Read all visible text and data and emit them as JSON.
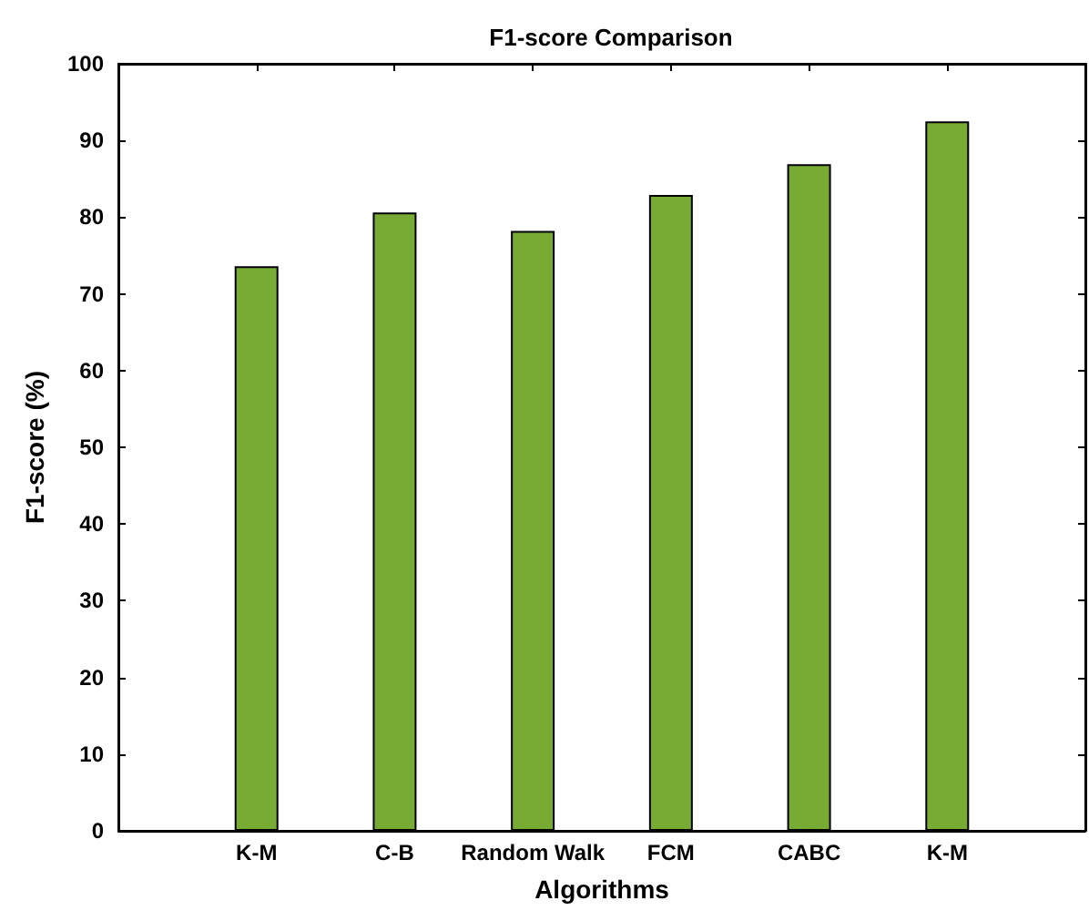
{
  "chart_data": {
    "type": "bar",
    "title": "F1-score Comparison",
    "xlabel": "Algorithms",
    "ylabel": "F1-score (%)",
    "categories": [
      "K-M",
      "C-B",
      "Random Walk",
      "FCM",
      "CABC",
      "K-M"
    ],
    "values": [
      73.6,
      80.6,
      78.2,
      82.9,
      86.9,
      92.5
    ],
    "color": "#78ab33",
    "ylim": [
      0,
      100
    ],
    "yticks": [
      0,
      10,
      20,
      30,
      40,
      50,
      60,
      70,
      80,
      90,
      100
    ],
    "grid": false
  }
}
